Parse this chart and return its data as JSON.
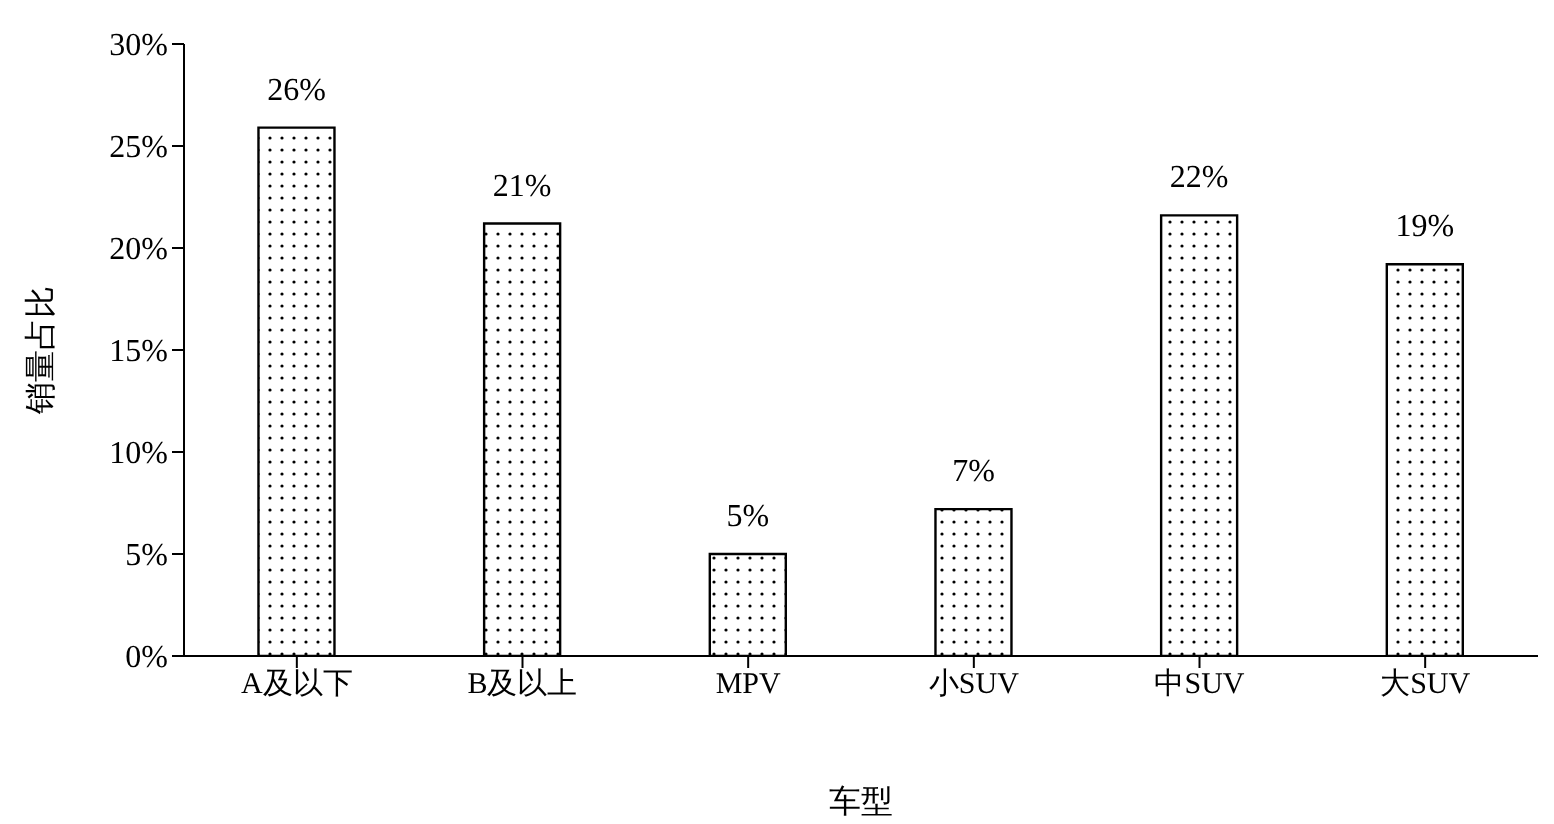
{
  "chart_data": {
    "type": "bar",
    "xlabel": "车型",
    "ylabel": "销量占比",
    "categories": [
      "A及以下",
      "B及以上",
      "MPV",
      "小SUV",
      "中SUV",
      "大SUV"
    ],
    "values": [
      25.9,
      21.2,
      5.0,
      7.2,
      21.6,
      19.2
    ],
    "value_labels": [
      "26%",
      "21%",
      "5%",
      "7%",
      "22%",
      "19%"
    ],
    "color": "#000000",
    "ylim": [
      0,
      30
    ],
    "yticks": [
      {
        "value": 0,
        "label": "0%"
      },
      {
        "value": 5,
        "label": "5%"
      },
      {
        "value": 10,
        "label": "10%"
      },
      {
        "value": 15,
        "label": "15%"
      },
      {
        "value": 20,
        "label": "20%"
      },
      {
        "value": 25,
        "label": "25%"
      },
      {
        "value": 30,
        "label": "30%"
      }
    ],
    "grid": false,
    "legend": false
  }
}
